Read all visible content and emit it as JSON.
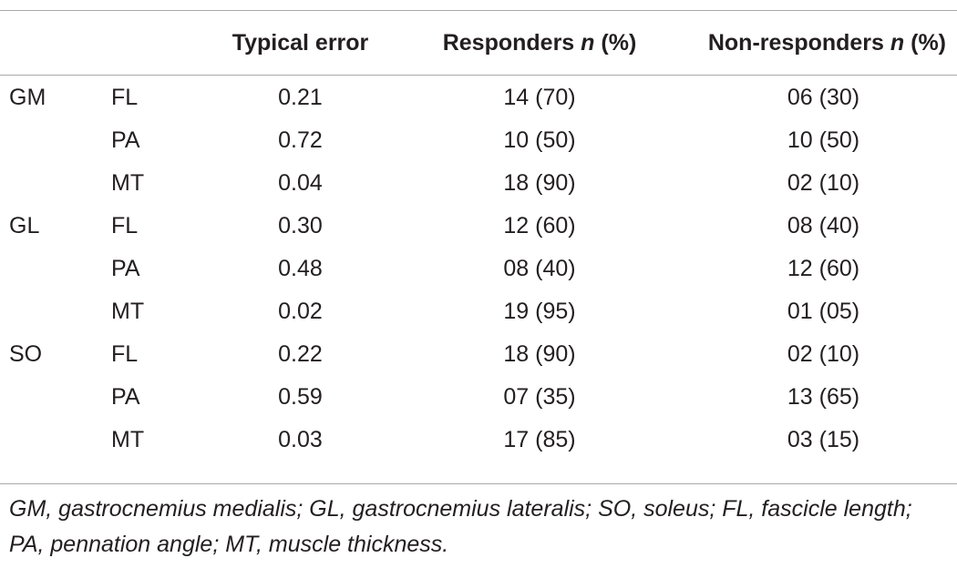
{
  "table": {
    "headers": {
      "muscle": "",
      "parameter": "",
      "typical_error": "Typical error",
      "responders_prefix": "Responders ",
      "responders_n": "n",
      "responders_suffix": " (%)",
      "non_responders_prefix": "Non-responders ",
      "non_responders_n": "n",
      "non_responders_suffix": " (%)"
    },
    "rows": [
      {
        "muscle": "GM",
        "parameter": "FL",
        "typical_error": "0.21",
        "responders": "14 (70)",
        "non_responders": "06 (30)"
      },
      {
        "muscle": "",
        "parameter": "PA",
        "typical_error": "0.72",
        "responders": "10 (50)",
        "non_responders": "10 (50)"
      },
      {
        "muscle": "",
        "parameter": "MT",
        "typical_error": "0.04",
        "responders": "18 (90)",
        "non_responders": "02 (10)"
      },
      {
        "muscle": "GL",
        "parameter": "FL",
        "typical_error": "0.30",
        "responders": "12 (60)",
        "non_responders": "08 (40)"
      },
      {
        "muscle": "",
        "parameter": "PA",
        "typical_error": "0.48",
        "responders": "08 (40)",
        "non_responders": "12 (60)"
      },
      {
        "muscle": "",
        "parameter": "MT",
        "typical_error": "0.02",
        "responders": "19 (95)",
        "non_responders": "01 (05)"
      },
      {
        "muscle": "SO",
        "parameter": "FL",
        "typical_error": "0.22",
        "responders": "18 (90)",
        "non_responders": "02 (10)"
      },
      {
        "muscle": "",
        "parameter": "PA",
        "typical_error": "0.59",
        "responders": "07 (35)",
        "non_responders": "13 (65)"
      },
      {
        "muscle": "",
        "parameter": "MT",
        "typical_error": "0.03",
        "responders": "17 (85)",
        "non_responders": "03 (15)"
      }
    ]
  },
  "footnote": "GM, gastrocnemius medialis; GL, gastrocnemius lateralis; SO, soleus; FL, fascicle length; PA, pennation angle; MT, muscle thickness."
}
